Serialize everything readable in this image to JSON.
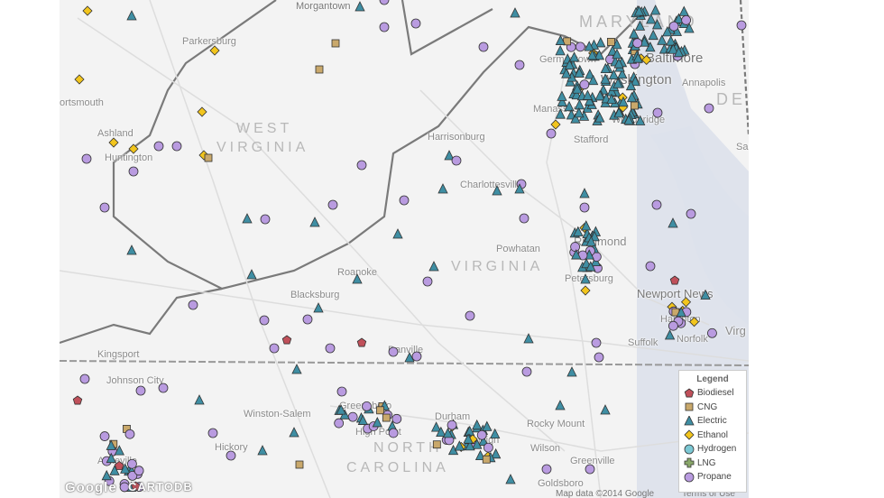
{
  "legend": {
    "title": "Legend",
    "items": [
      {
        "label": "Biodiesel",
        "shape": "pentagon",
        "color": "#c0505a"
      },
      {
        "label": "CNG",
        "shape": "square",
        "color": "#c9a86b"
      },
      {
        "label": "Electric",
        "shape": "triangle",
        "color": "#3f8ea3"
      },
      {
        "label": "Ethanol",
        "shape": "diamond",
        "color": "#f2c51d"
      },
      {
        "label": "Hydrogen",
        "shape": "circle",
        "color": "#7cc8d4"
      },
      {
        "label": "LNG",
        "shape": "cross",
        "color": "#8aa86a"
      },
      {
        "label": "Propane",
        "shape": "circle",
        "color": "#b99be0"
      }
    ]
  },
  "places": {
    "morgantown": "Morgantown",
    "parkersburg": "Parkersburg",
    "portsmouth": "ortsmouth",
    "ashland": "Ashland",
    "huntington": "Huntington",
    "harrisonburg": "Harrisonburg",
    "charlottesville": "Charlottesville",
    "germantown": "Germantown",
    "baltimore": "Baltimore",
    "washington": "Washington",
    "annapolis": "Annapolis",
    "manassas": "Manassas",
    "woodbridge": "Woodbridge",
    "stafford": "Stafford",
    "salisbury": "Sal",
    "richmond": "Richmond",
    "powhatan": "Powhatan",
    "petersburg": "Petersburg",
    "newport_news": "Newport News",
    "hampton": "Hampton",
    "norfolk": "Norfolk",
    "virginia_beach": "Virg",
    "suffolk": "Suffolk",
    "roanoke": "Roanoke",
    "blacksburg": "Blacksburg",
    "danville": "Danville",
    "kingsport": "Kingsport",
    "johnson_city": "Johnson City",
    "winston_salem": "Winston-Salem",
    "greensboro": "Greensboro",
    "high_point": "High Point",
    "durham": "Durham",
    "raleigh": "Raleigh",
    "rocky_mount": "Rocky Mount",
    "wilson": "Wilson",
    "greenville": "Greenville",
    "goldsboro": "Goldsboro",
    "hickory": "Hickory",
    "asheville": "Asheville"
  },
  "states": {
    "west": "WEST",
    "virginia_wv": "VIRGINIA",
    "maryland": "MARYLAND",
    "de": "DE",
    "virginia": "VIRGINIA",
    "north": "NORTH",
    "carolina": "CAROLINA"
  },
  "attribution": {
    "google": "Google",
    "cartodb": "CARTODB",
    "map_data": "Map data ©2014 Google",
    "terms": "Terms of Use"
  }
}
